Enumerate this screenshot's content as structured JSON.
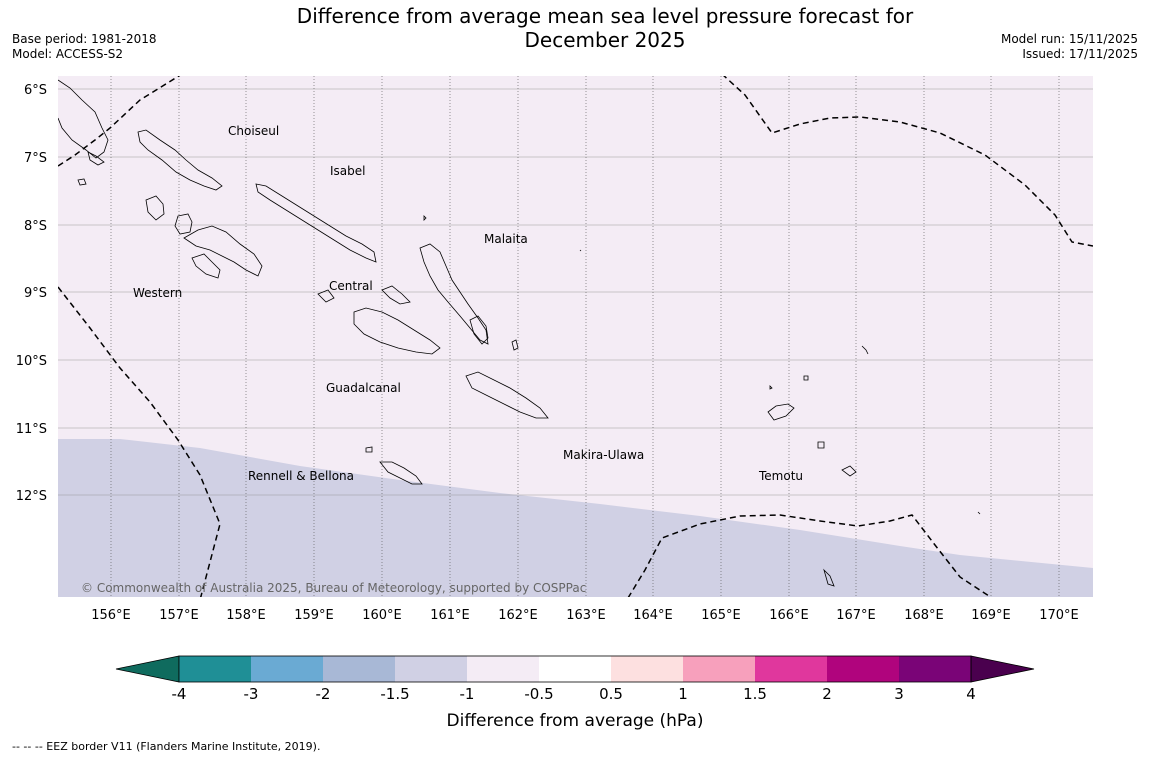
{
  "title_line1": "Difference from average mean sea level pressure forecast for",
  "title_line2": "December 2025",
  "base_period": "Base period: 1981-2018",
  "model": "Model: ACCESS-S2",
  "model_run": "Model run: 15/11/2025",
  "issued": "Issued: 17/11/2025",
  "copyright": "© Commonwealth of Australia 2025, Bureau of Meteorology, supported by COSPPac",
  "footnote": "--  --  -- EEZ border V11 (Flanders Marine Institute, 2019).",
  "map": {
    "lat_labels": [
      "6°S",
      "7°S",
      "8°S",
      "9°S",
      "10°S",
      "11°S",
      "12°S"
    ],
    "lon_labels": [
      "156°E",
      "157°E",
      "158°E",
      "159°E",
      "160°E",
      "161°E",
      "162°E",
      "163°E",
      "164°E",
      "165°E",
      "166°E",
      "167°E",
      "168°E",
      "169°E",
      "170°E"
    ],
    "provinces": [
      {
        "name": "Choiseul"
      },
      {
        "name": "Isabel"
      },
      {
        "name": "Malaita"
      },
      {
        "name": "Western"
      },
      {
        "name": "Central"
      },
      {
        "name": "Guadalcanal"
      },
      {
        "name": "Makira-Ulawa"
      },
      {
        "name": "Temotu"
      },
      {
        "name": "Rennell & Bellona"
      }
    ],
    "fill_category": "-1 to -0.5 hPa",
    "south_fill_category": "-1.5 to -1 hPa"
  },
  "colorbar": {
    "label": "Difference from average (hPa)",
    "ticks": [
      "-4",
      "-3",
      "-2",
      "-1.5",
      "-1",
      "-0.5",
      "0.5",
      "1",
      "1.5",
      "2",
      "3",
      "4"
    ],
    "colors": {
      "below_-4": "#0f6b5e",
      "-4_-3": "#1f8f96",
      "-3_-2": "#6aaad3",
      "-2_-1.5": "#a8b8d6",
      "-1.5_-1": "#d0d0e4",
      "-1_-0.5": "#f4ecf5",
      "-0.5_0.5": "#ffffff",
      "0.5_1": "#fde0e0",
      "1_1.5": "#f7a0bc",
      "1.5_2": "#e0379d",
      "2_3": "#b0047d",
      "3_4": "#7a0477",
      "above_4": "#4a004e"
    }
  }
}
